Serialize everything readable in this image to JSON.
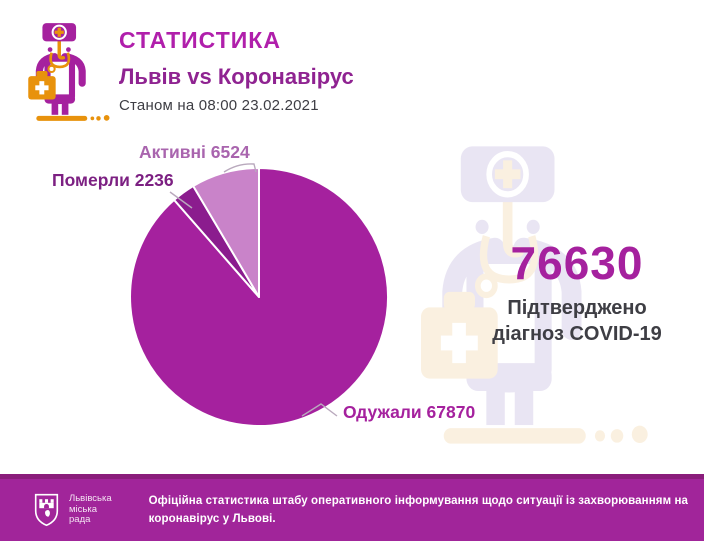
{
  "colors": {
    "primary": "#a5219e",
    "accent_orange": "#e8920c",
    "title_magenta": "#b01fab",
    "subtitle_purple": "#8f2391",
    "text_dark": "#3e3e44",
    "label_active": "#a965ae",
    "label_deaths": "#7c2082",
    "footer_bg": "#a1259a",
    "footer_stripe": "#8a1d7b"
  },
  "header": {
    "title": "СТАТИСТИКА",
    "subtitle": "Львів vs Коронавірус",
    "as_of": "Станом на 08:00 23.02.2021"
  },
  "chart_data": {
    "type": "pie",
    "start_angle_deg": -90,
    "direction": "clockwise",
    "total": 76630,
    "slices": [
      {
        "key": "recovered",
        "label": "Одужали",
        "value": 67870,
        "display": "Одужали 67870",
        "color": "#a5219e"
      },
      {
        "key": "deaths",
        "label": "Померли",
        "value": 2236,
        "display": "Померли 2236",
        "color": "#8b1c8e"
      },
      {
        "key": "active",
        "label": "Активні",
        "value": 6524,
        "display": "Активні 6524",
        "color": "#c983c9"
      }
    ]
  },
  "stats": {
    "confirmed_total": "76630",
    "caption_line1": "Підтверджено",
    "caption_line2": "діагноз COVID-19"
  },
  "footer": {
    "org_line1": "Львівська",
    "org_line2": "міська",
    "org_line3": "рада",
    "note_line1": "Офіційна статистика штабу оперативного інформування щодо ситуації із захворюванням на",
    "note_line2": "коронавірус у Львові."
  },
  "icons": {
    "doctor": "doctor-with-medical-bag-icon",
    "watermark": "faint-doctor-background-icon",
    "logo": "lviv-city-council-shield-logo"
  }
}
